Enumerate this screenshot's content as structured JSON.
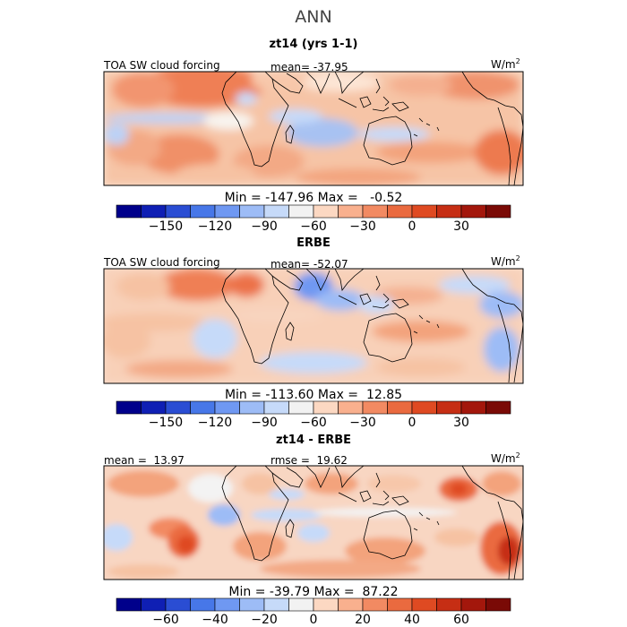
{
  "figure_title": "ANN",
  "panels": [
    {
      "title": "zt14 (yrs 1-1)",
      "left_label": "TOA SW cloud forcing",
      "center_label": "mean= -37.95",
      "units": "W/m",
      "units_sup": "2",
      "minmax": "Min = -147.96 Max =   -0.52"
    },
    {
      "title": "ERBE",
      "left_label": "TOA SW cloud forcing",
      "center_label": "mean= -52.07",
      "units": "W/m",
      "units_sup": "2",
      "minmax": "Min = -113.60 Max =  12.85"
    },
    {
      "title": "zt14 - ERBE",
      "left_label": "mean =  13.97",
      "center_label": "rmse =  19.62",
      "units": "W/m",
      "units_sup": "2",
      "minmax": "Min = -39.79 Max =  87.22"
    }
  ],
  "colorbars": [
    {
      "colors": [
        "#00008b",
        "#0f1fb4",
        "#2a4dd3",
        "#4777e8",
        "#6f98f2",
        "#9dbcf6",
        "#c6daf9",
        "#f2f2f2",
        "#fcd8c2",
        "#f9b08e",
        "#f28a62",
        "#ea6a3f",
        "#df4a22",
        "#c62e14",
        "#a3170c",
        "#7a0a06"
      ],
      "tick_labels": [
        "-150",
        "-120",
        "-90",
        "-60",
        "-30",
        "0",
        "30"
      ],
      "tick_positions": [
        2,
        4,
        6,
        8,
        10,
        12,
        14
      ]
    },
    {
      "colors": [
        "#00008b",
        "#0f1fb4",
        "#2a4dd3",
        "#4777e8",
        "#6f98f2",
        "#9dbcf6",
        "#c6daf9",
        "#f2f2f2",
        "#fcd8c2",
        "#f9b08e",
        "#f28a62",
        "#ea6a3f",
        "#df4a22",
        "#c62e14",
        "#a3170c",
        "#7a0a06"
      ],
      "tick_labels": [
        "-150",
        "-120",
        "-90",
        "-60",
        "-30",
        "0",
        "30"
      ],
      "tick_positions": [
        2,
        4,
        6,
        8,
        10,
        12,
        14
      ]
    },
    {
      "colors": [
        "#00008b",
        "#0f1fb4",
        "#2a4dd3",
        "#4777e8",
        "#6f98f2",
        "#9dbcf6",
        "#c6daf9",
        "#f2f2f2",
        "#fcd8c2",
        "#f9b08e",
        "#f28a62",
        "#ea6a3f",
        "#df4a22",
        "#c62e14",
        "#a3170c",
        "#7a0a06"
      ],
      "tick_labels": [
        "-60",
        "-40",
        "-20",
        "0",
        "20",
        "40",
        "60"
      ],
      "tick_positions": [
        2,
        4,
        6,
        8,
        10,
        12,
        14
      ]
    }
  ]
}
